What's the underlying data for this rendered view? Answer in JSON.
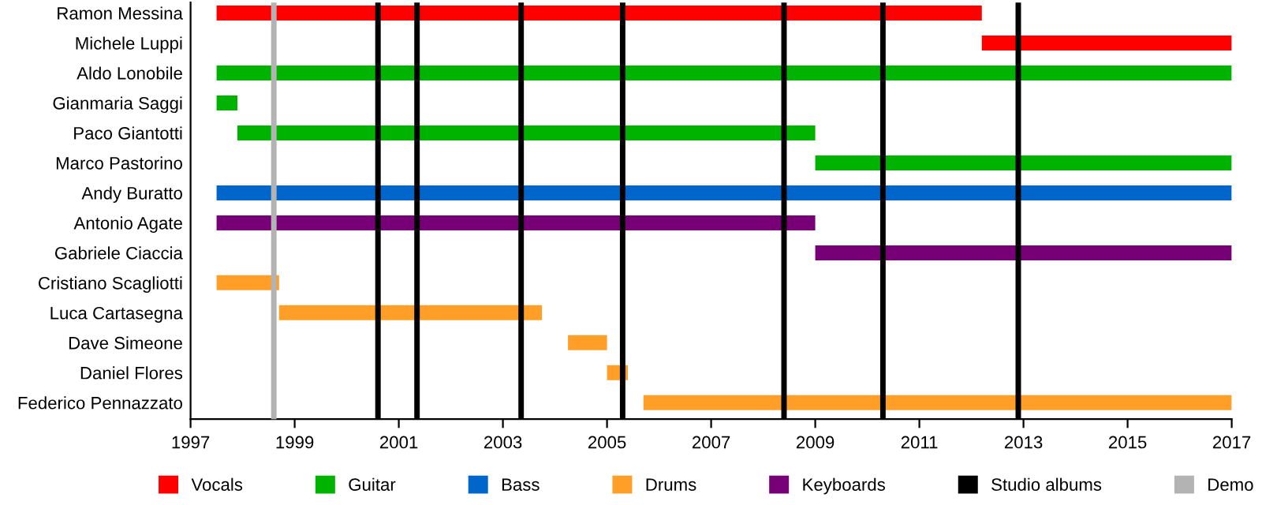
{
  "chart_data": {
    "type": "bar",
    "orientation": "horizontal",
    "categories": [
      "Ramon Messina",
      "Michele Luppi",
      "Aldo Lonobile",
      "Gianmaria Saggi",
      "Paco Giantotti",
      "Marco Pastorino",
      "Andy Buratto",
      "Antonio Agate",
      "Gabriele Ciaccia",
      "Cristiano Scagliotti",
      "Luca Cartasegna",
      "Dave Simeone",
      "Daniel Flores",
      "Federico Pennazzato"
    ],
    "series": [
      {
        "name": "Vocals",
        "color": "#ff0000",
        "base": [
          1997.5,
          2012.2,
          null,
          null,
          null,
          null,
          null,
          null,
          null,
          null,
          null,
          null,
          null,
          null
        ],
        "values": [
          14.7,
          4.8,
          null,
          null,
          null,
          null,
          null,
          null,
          null,
          null,
          null,
          null,
          null,
          null
        ]
      },
      {
        "name": "Guitar",
        "color": "#00b300",
        "base": [
          null,
          null,
          1997.5,
          1997.5,
          1997.9,
          2009.0,
          null,
          null,
          null,
          null,
          null,
          null,
          null,
          null
        ],
        "values": [
          null,
          null,
          19.5,
          0.4,
          11.1,
          8.0,
          null,
          null,
          null,
          null,
          null,
          null,
          null,
          null
        ]
      },
      {
        "name": "Bass",
        "color": "#0066cc",
        "base": [
          null,
          null,
          null,
          null,
          null,
          null,
          1997.5,
          null,
          null,
          null,
          null,
          null,
          null,
          null
        ],
        "values": [
          null,
          null,
          null,
          null,
          null,
          null,
          19.5,
          null,
          null,
          null,
          null,
          null,
          null,
          null
        ]
      },
      {
        "name": "Drums",
        "color": "#ff9f28",
        "base": [
          null,
          null,
          null,
          null,
          null,
          null,
          null,
          null,
          null,
          1997.5,
          1998.7,
          2004.25,
          2005.0,
          2005.7
        ],
        "values": [
          null,
          null,
          null,
          null,
          null,
          null,
          null,
          null,
          null,
          1.2,
          5.05,
          0.75,
          0.4,
          11.3
        ]
      },
      {
        "name": "Keyboards",
        "color": "#770077",
        "base": [
          null,
          null,
          null,
          null,
          null,
          null,
          null,
          1997.5,
          2009.0,
          null,
          null,
          null,
          null,
          null
        ],
        "values": [
          null,
          null,
          null,
          null,
          null,
          null,
          null,
          11.5,
          8.0,
          null,
          null,
          null,
          null,
          null
        ]
      }
    ],
    "ref_lines": [
      {
        "axis": "x",
        "value": 2000.6,
        "label": "Studio albums",
        "color": "#000000"
      },
      {
        "axis": "x",
        "value": 2001.35,
        "label": null,
        "color": "#000000"
      },
      {
        "axis": "x",
        "value": 2003.35,
        "label": null,
        "color": "#000000"
      },
      {
        "axis": "x",
        "value": 2005.3,
        "label": null,
        "color": "#000000"
      },
      {
        "axis": "x",
        "value": 2008.4,
        "label": null,
        "color": "#000000"
      },
      {
        "axis": "x",
        "value": 2010.3,
        "label": null,
        "color": "#000000"
      },
      {
        "axis": "x",
        "value": 2012.9,
        "label": null,
        "color": "#000000"
      },
      {
        "axis": "x",
        "value": 1998.6,
        "label": "Demo",
        "color": "#b3b3b3"
      }
    ],
    "xlim": [
      1997,
      2017
    ],
    "xticks": [
      1997,
      1999,
      2001,
      2003,
      2005,
      2007,
      2009,
      2011,
      2013,
      2015,
      2017
    ],
    "grid": false,
    "legend": "bottom"
  }
}
